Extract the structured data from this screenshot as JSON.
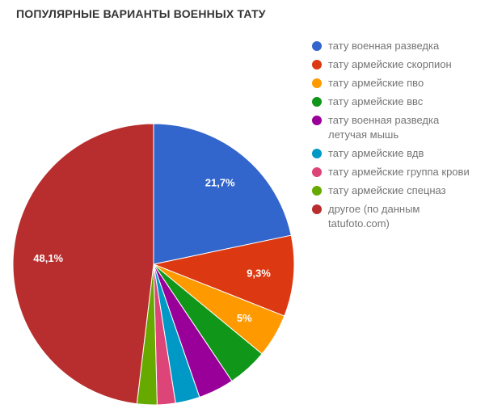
{
  "title": "ПОПУЛЯРНЫЕ ВАРИАНТЫ ВОЕННЫХ ТАТУ",
  "colors": {
    "background": "#ffffff",
    "title_text": "#333333",
    "legend_text": "#757575",
    "slice_label_text": "#ffffff",
    "slice_border": "#ffffff"
  },
  "chart_data": {
    "type": "pie",
    "title": "ПОПУЛЯРНЫЕ ВАРИАНТЫ ВОЕННЫХ ТАТУ",
    "legend_position": "right",
    "start_angle_deg": 0,
    "direction": "clockwise",
    "units": "%",
    "slices": [
      {
        "label": "тату военная разведка",
        "value": 21.7,
        "display": "21,7%",
        "color": "#3366CC"
      },
      {
        "label": "тату армейские скорпион",
        "value": 9.3,
        "display": "9,3%",
        "color": "#DC3912"
      },
      {
        "label": "тату армейские пво",
        "value": 5.0,
        "display": "5%",
        "color": "#FF9900"
      },
      {
        "label": "тату армейские ввс",
        "value": 4.6,
        "display": "",
        "color": "#109618"
      },
      {
        "label": "тату военная разведка летучая мышь",
        "value": 4.1,
        "display": "",
        "color": "#990099"
      },
      {
        "label": "тату армейские вдв",
        "value": 2.8,
        "display": "",
        "color": "#0099C6"
      },
      {
        "label": "тату армейские группа крови",
        "value": 2.1,
        "display": "",
        "color": "#DD4477"
      },
      {
        "label": "тату армейские спецназ",
        "value": 2.3,
        "display": "",
        "color": "#66AA00"
      },
      {
        "label": "другое (по данным tatufoto.com)",
        "value": 48.1,
        "display": "48,1%",
        "color": "#B82E2E"
      }
    ]
  }
}
